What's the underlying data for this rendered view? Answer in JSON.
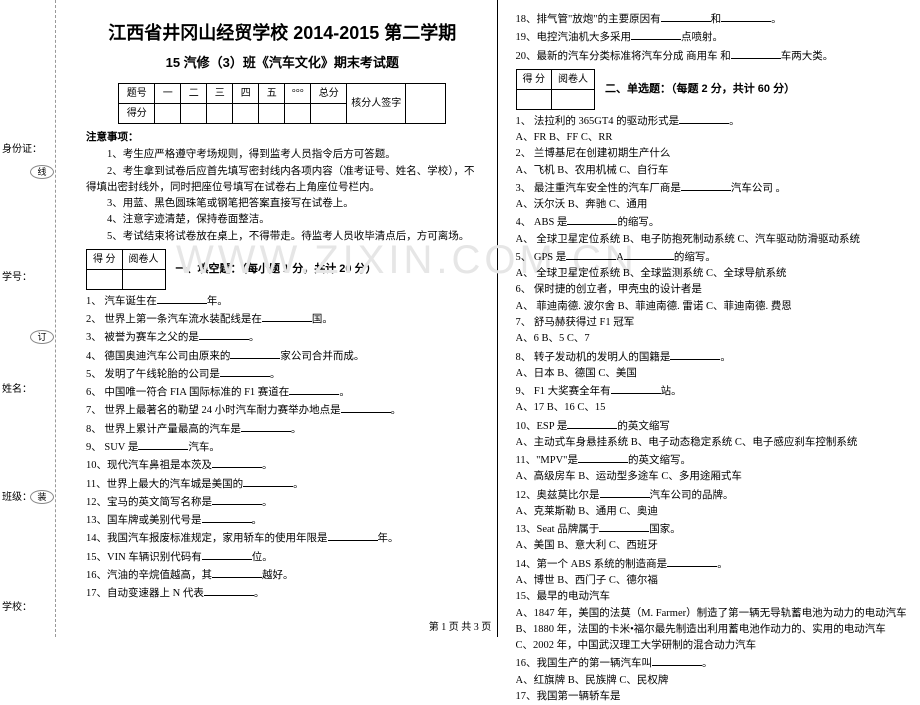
{
  "binding": {
    "labels": [
      "学校：",
      "班级：",
      "姓名：",
      "学号：",
      "身份证："
    ],
    "ovals": [
      "装",
      "订",
      "线"
    ]
  },
  "header": {
    "title": "江西省井冈山经贸学校 2014-2015 第二学期",
    "subtitle": "15 汽修（3）班《汽车文化》期末考试题"
  },
  "score_table": {
    "row1": [
      "题号",
      "一",
      "二",
      "三",
      "四",
      "五",
      "°°°",
      "总分",
      "核分人签字"
    ],
    "row2": "得分"
  },
  "mini_table": {
    "c1": "得 分",
    "c2": "阅卷人"
  },
  "notices": {
    "hd": "注意事项：",
    "items": [
      "1、考生应严格遵守考场规则，得到监考人员指令后方可答题。",
      "2、考生拿到试卷后应首先填写密封线内各项内容（准考证号、姓名、学校），不",
      "得填出密封线外，同时把座位号填写在试卷右上角座位号栏内。",
      "3、用蓝、黑色圆珠笔或钢笔把答案直接写在试卷上。",
      "4、注意字迹清楚，保持卷面整洁。",
      "5、考试结束将试卷放在桌上，不得带走。待监考人员收毕清点后，方可离场。"
    ]
  },
  "sections": {
    "one": "一、填空题：（每小题 1 分，共计 20 分）",
    "two": "二、单选题：（每题 2 分，共计 60 分）"
  },
  "fill": [
    "1、 汽车诞生在______年。",
    "2、 世界上第一条汽车流水装配线是在______国。",
    "3、 被誉为赛车之父的是______。",
    "4、 德国奥迪汽车公司由原来的______家公司合并而成。",
    "5、 发明了午线轮胎的公司是______。",
    "6、 中国唯一符合 FIA 国际标准的 F1 赛道在______。",
    "7、 世界上最著名的勒望 24 小时汽车耐力赛举办地点是______。",
    "8、 世界上累计产量最高的汽车是______。",
    "9、 SUV 是______汽车。",
    "10、现代汽车鼻祖是本茨及______。",
    "11、世界上最大的汽车城是美国的______。",
    "12、宝马的英文简写名称是______。",
    "13、国车牌或美别代号是______。",
    "14、我国汽车报废标准规定，家用轿车的使用年限是______年。",
    "15、VIN 车辆识别代码有______位。",
    "16、汽油的辛烷值越高，其______越好。",
    "17、自动变速器上 N 代表______。"
  ],
  "fill_right": [
    "18、排气管\"放炮\"的主要原因有______和______。",
    "19、电控汽油机大多采用______点喷射。",
    "20、最新的汽车分类标准将汽车分成 商用车 和______车两大类。"
  ],
  "mcq": [
    {
      "q": "1、 法拉利的 365GT4 的驱动形式是______。",
      "opts": [
        "A、FR",
        "B、FF",
        "C、RR"
      ]
    },
    {
      "q": "2、 兰博基尼在创建初期生产什么",
      "opts": [
        "A、飞机",
        "B、农用机械",
        "C、自行车"
      ]
    },
    {
      "q": "3、 最注重汽车安全性的汽车厂商是______汽车公司 。",
      "opts": [
        "A、沃尔沃",
        "B、奔驰",
        "C、通用"
      ]
    },
    {
      "q": "4、 ABS 是______的缩写。",
      "opts": [
        "A、 全球卫星定位系统 B、电子防抱死制动系统 C、汽车驱动防滑驱动系统"
      ]
    },
    {
      "q": "5、 GPS 是______A______的缩写。",
      "opts": [
        "A、 全球卫星定位系统",
        "B、全球监测系统",
        "C、全球导航系统"
      ]
    },
    {
      "q": "6、 保时捷的创立者，甲壳虫的设计者是",
      "opts": [
        "A、 菲迪南德. 波尔舍  B、菲迪南德. 雷诺  C、菲迪南德. 费恩"
      ]
    },
    {
      "q": "7、 舒马赫获得过 F1 冠军",
      "opts": [
        "A、6",
        "B、5",
        "C、7"
      ]
    },
    {
      "q": "8、 转子发动机的发明人的国籍是______。",
      "opts": [
        "A、日本",
        "B、德国",
        "C、美国"
      ]
    },
    {
      "q": "9、 F1 大奖赛全年有______站。",
      "opts": [
        "A、17",
        "B、16",
        "C、15"
      ]
    },
    {
      "q": "10、ESP 是______的英文缩写",
      "opts": [
        "A、主动式车身悬挂系统 B、电子动态稳定系统 C、电子感应刹车控制系统"
      ]
    },
    {
      "q": "11、\"MPV\"是______的英文缩写。",
      "opts": [
        "A、高级房车",
        "B、运动型多途车 C、多用途厢式车"
      ]
    },
    {
      "q": "12、奥兹莫比尔是______汽车公司的品牌。",
      "opts": [
        "A、克莱斯勒",
        "B、通用",
        "C、奥迪"
      ]
    },
    {
      "q": "13、Seat 品牌属于______国家。",
      "opts": [
        "A、美国",
        "B、意大利",
        "C、西班牙"
      ]
    },
    {
      "q": "14、第一个 ABS 系统的制造商是______。",
      "opts": [
        "A、博世",
        "B、西门子",
        "C、德尔福"
      ]
    },
    {
      "q": "15、最早的电动汽车",
      "opts": []
    },
    {
      "q": "   A、1847 年，美国的法莫（M. Farmer）制造了第一辆无导轨蓄电池为动力的电动汽车",
      "opts": []
    },
    {
      "q": "   B、1880 年，法国的卡米•福尔最先制造出利用蓄电池作动力的、实用的电动汽车",
      "opts": []
    },
    {
      "q": "   C、2002 年，中国武汉理工大学研制的混合动力汽车",
      "opts": []
    },
    {
      "q": "16、我国生产的第一辆汽车叫______。",
      "opts": [
        "A、红旗牌",
        "B、民族牌",
        "C、民权牌"
      ]
    },
    {
      "q": "17、我国第一辆轿车是",
      "opts": []
    }
  ],
  "watermark": "WWW.ZIXIN.COM.CN",
  "footer": "第 1 页 共 3 页"
}
